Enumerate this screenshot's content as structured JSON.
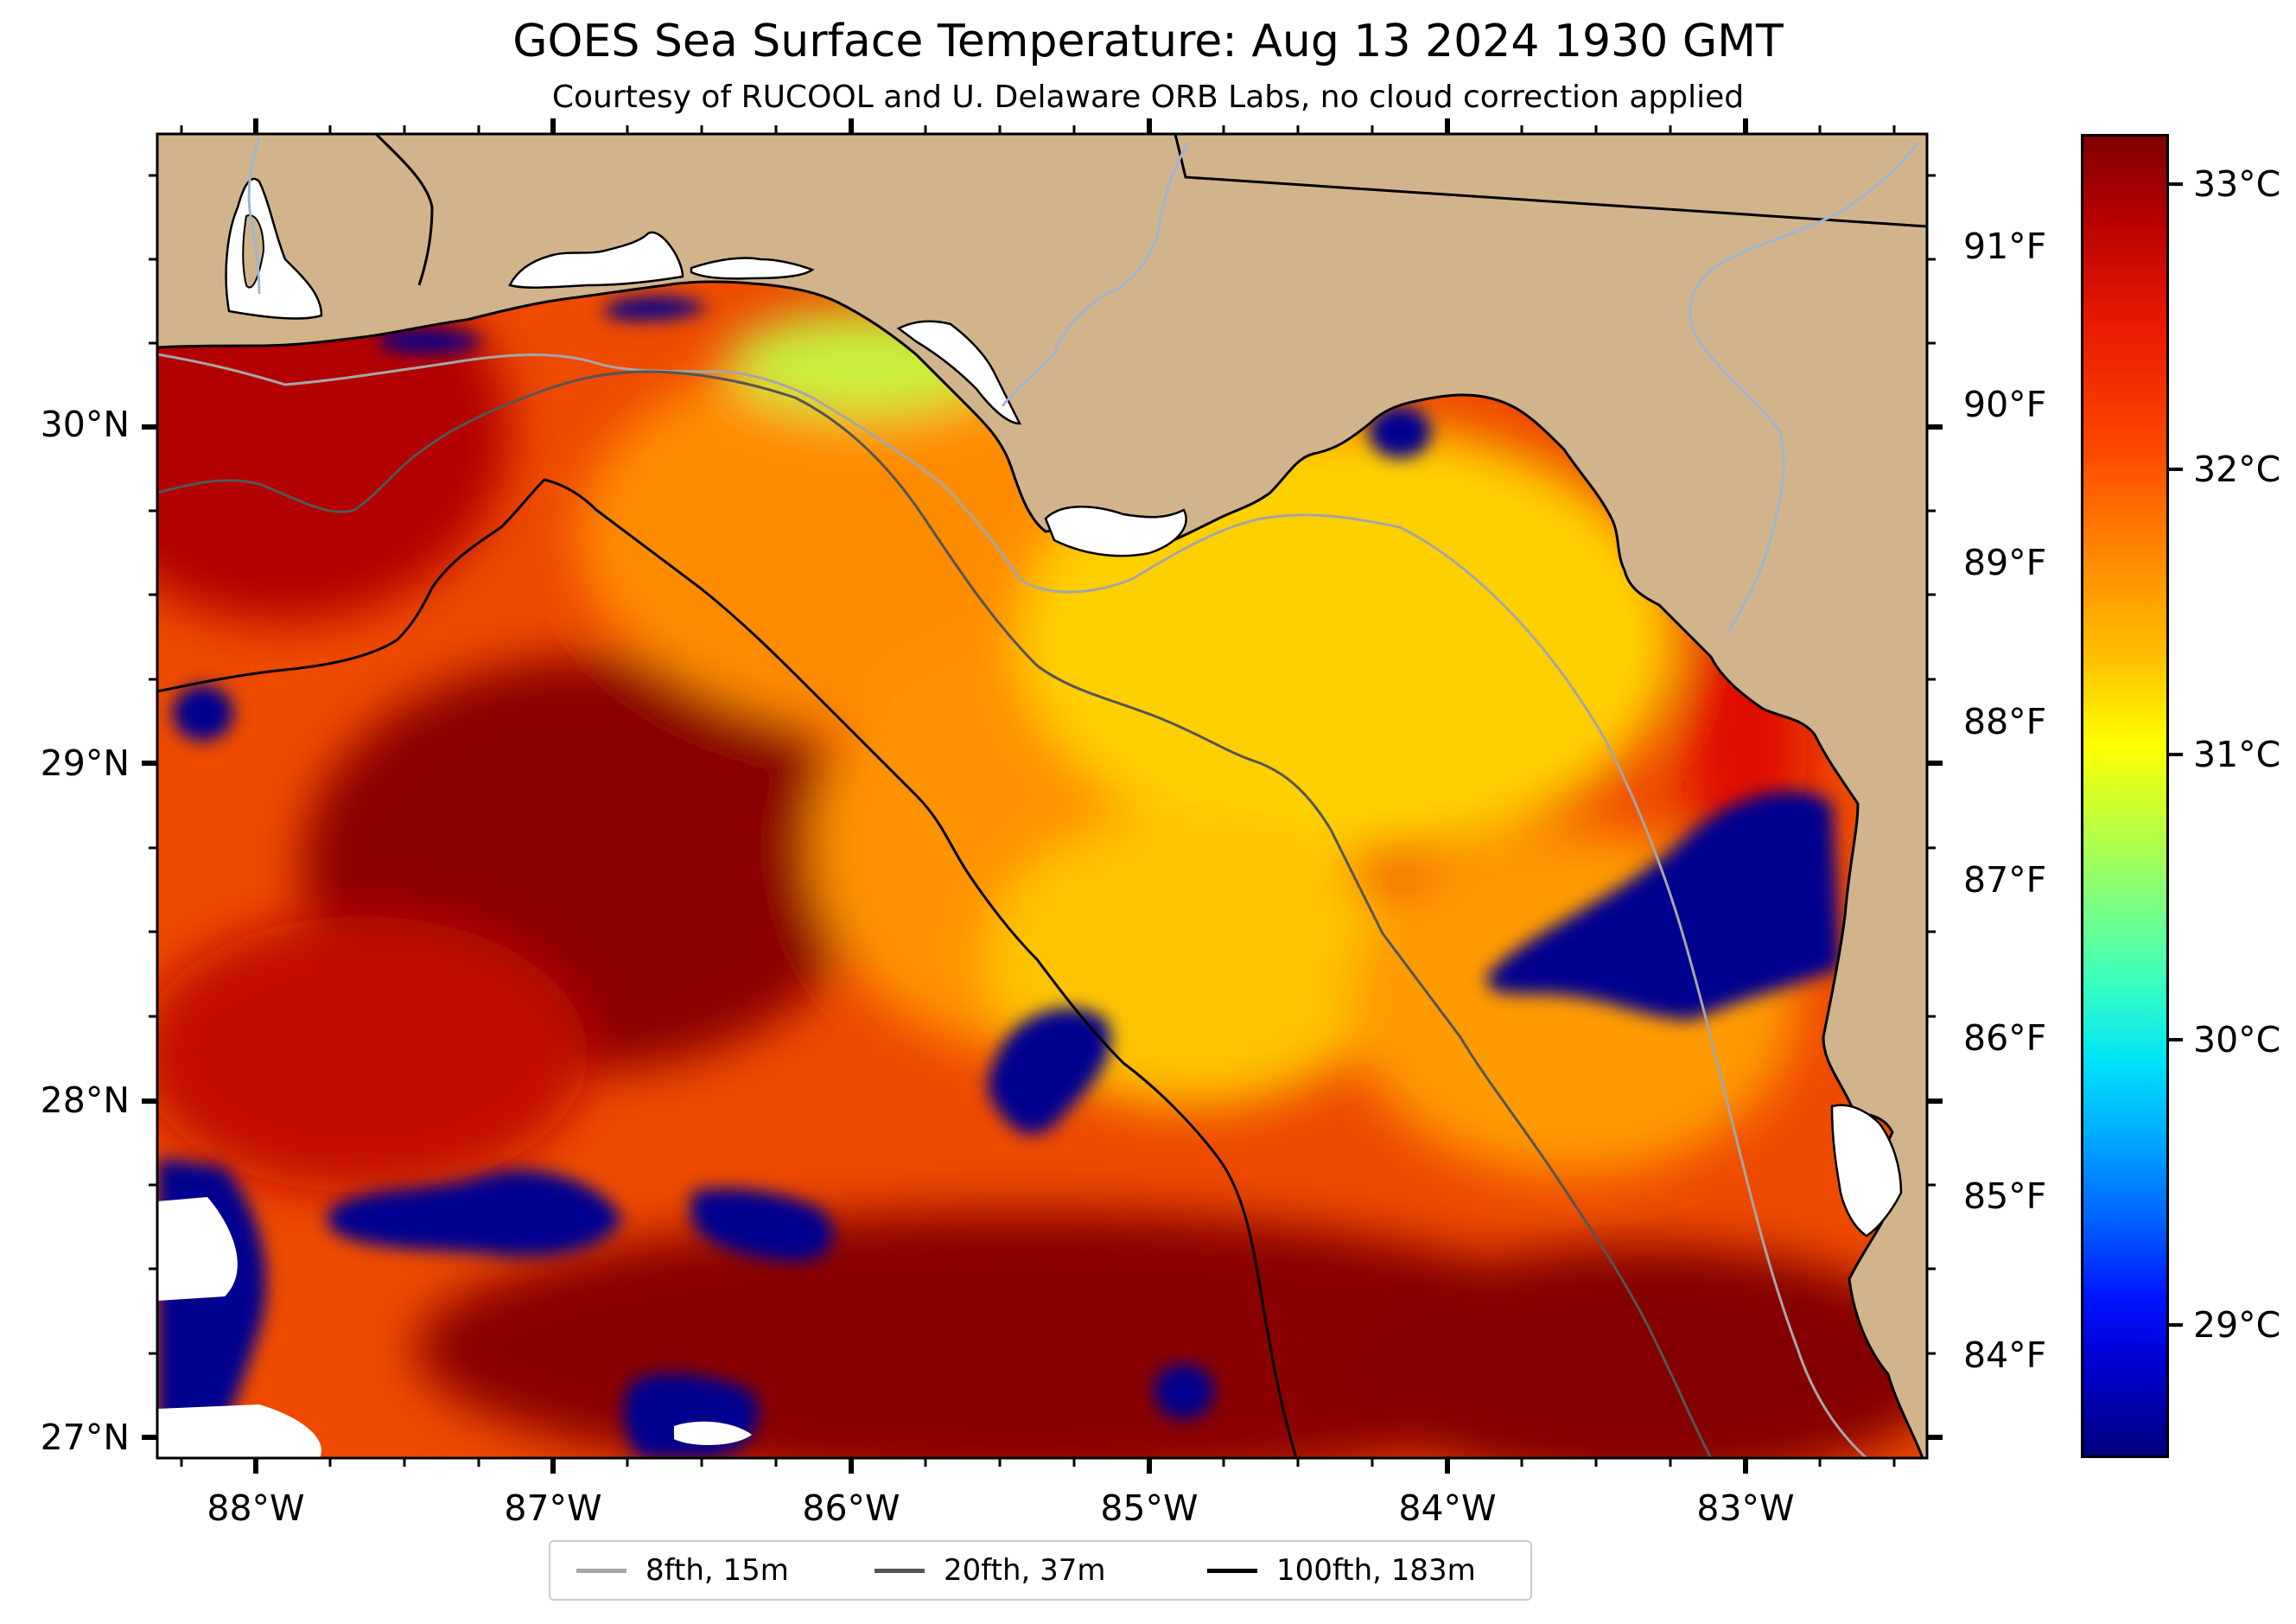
{
  "header": {
    "title": "GOES Sea Surface Temperature: Aug 13 2024 1930 GMT",
    "subtitle": "Courtesy of RUCOOL and U. Delaware ORB Labs, no cloud correction applied"
  },
  "axes": {
    "latitude_labels": [
      "30°N",
      "29°N",
      "28°N",
      "27°N"
    ],
    "longitude_labels": [
      "88°W",
      "87°W",
      "86°W",
      "85°W",
      "84°W",
      "83°W"
    ],
    "lat_range": [
      26.94,
      30.85
    ],
    "lon_range": [
      -88.33,
      -82.39
    ]
  },
  "colorbar": {
    "fahrenheit_labels": [
      "91°F",
      "90°F",
      "89°F",
      "88°F",
      "87°F",
      "86°F",
      "85°F",
      "84°F"
    ],
    "celsius_labels": [
      "33°C",
      "32°C",
      "31°C",
      "30°C",
      "29°C"
    ],
    "colormap": "jet",
    "range_c": [
      28.5,
      33.15
    ]
  },
  "legend": {
    "items": [
      {
        "label": "8fth, 15m",
        "color": "#a6a6a6"
      },
      {
        "label": "20fth, 37m",
        "color": "#555555"
      },
      {
        "label": "100fth, 183m",
        "color": "#000000"
      }
    ],
    "placement": "bottom-center"
  },
  "colors": {
    "land": "#d2b48c",
    "coastline": "#000000",
    "rivers": "#9fb6cf",
    "no_data": "#ffffff"
  }
}
